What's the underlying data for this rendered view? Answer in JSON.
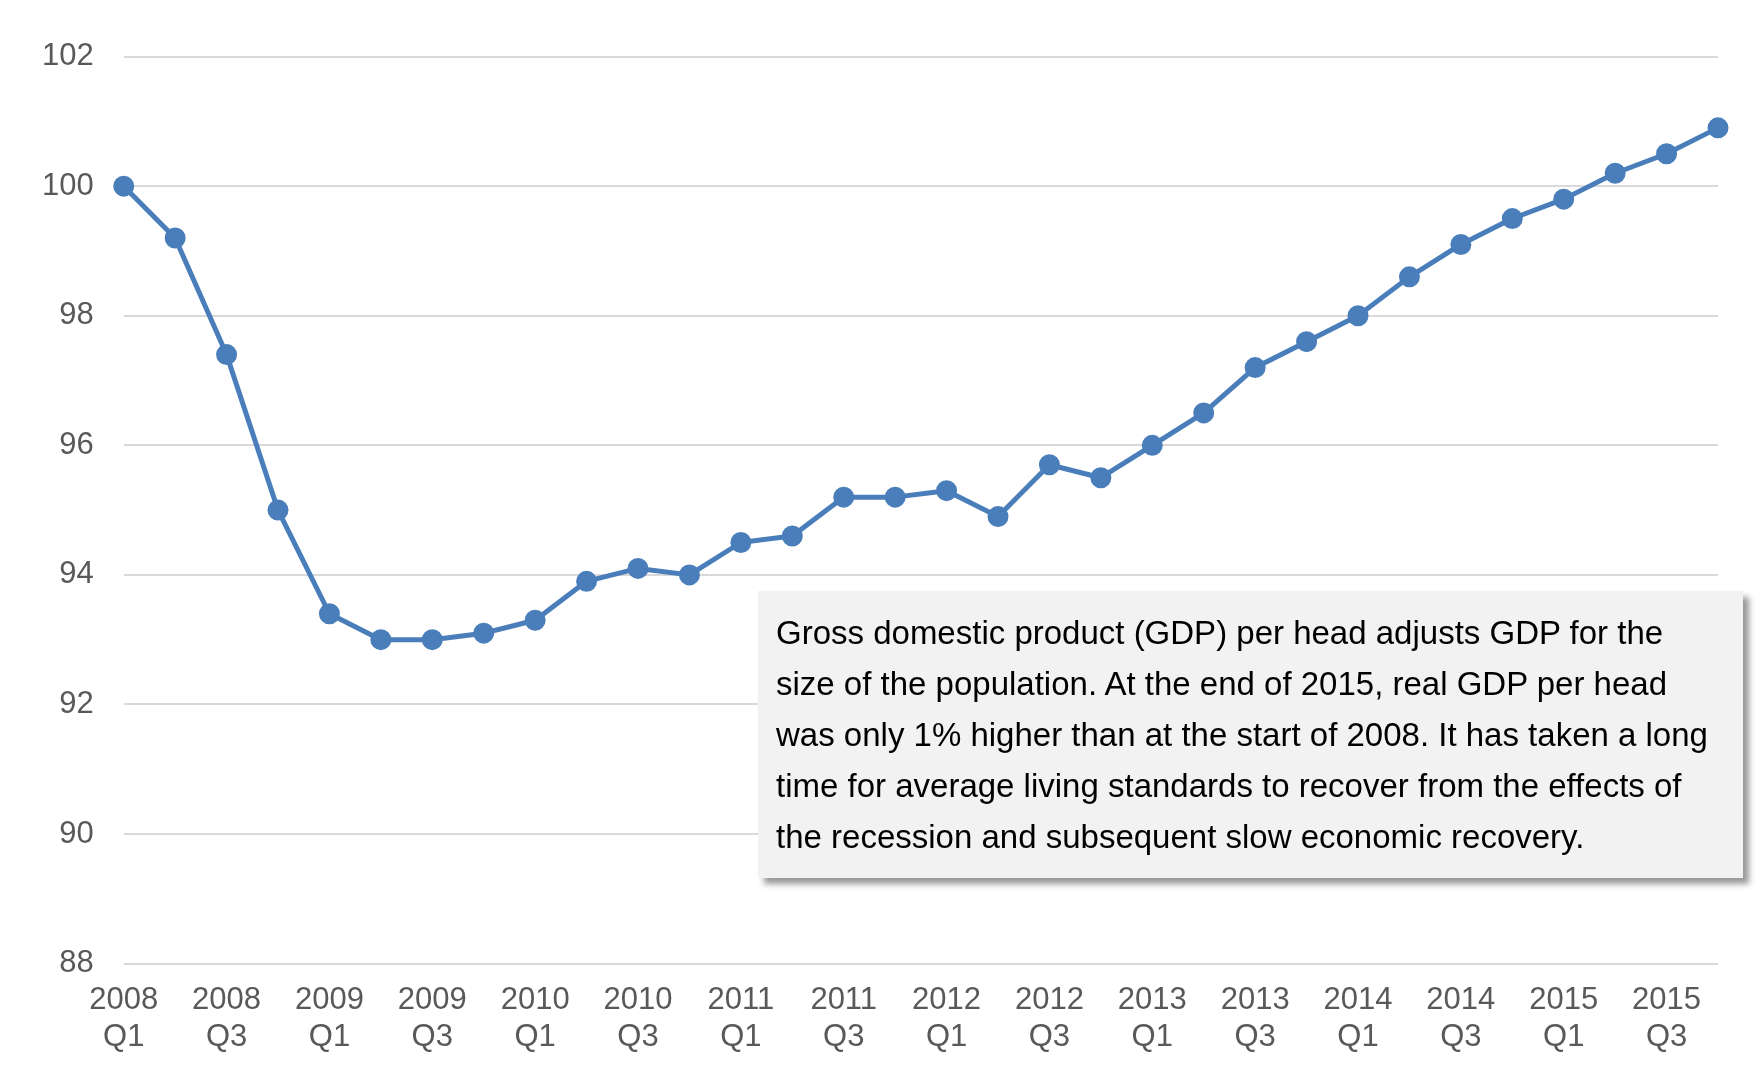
{
  "chart_data": {
    "type": "line",
    "categories": [
      "2008 Q1",
      null,
      "2008 Q3",
      null,
      "2009 Q1",
      null,
      "2009 Q3",
      null,
      "2010 Q1",
      null,
      "2010 Q3",
      null,
      "2011 Q1",
      null,
      "2011 Q3",
      null,
      "2012 Q1",
      null,
      "2012 Q3",
      null,
      "2013 Q1",
      null,
      "2013 Q3",
      null,
      "2014 Q1",
      null,
      "2014 Q3",
      null,
      "2015 Q1",
      null,
      "2015 Q3",
      null
    ],
    "series": [
      {
        "color": "#4a7ebb",
        "values": [
          100,
          99.2,
          97.4,
          95.0,
          93.4,
          93.0,
          93.0,
          93.1,
          93.3,
          93.9,
          94.1,
          94.0,
          94.5,
          94.6,
          95.2,
          95.2,
          95.3,
          94.9,
          95.7,
          95.5,
          96.0,
          96.5,
          97.2,
          97.6,
          98.0,
          98.6,
          99.1,
          99.5,
          99.8,
          100.2,
          100.5,
          100.9
        ]
      }
    ],
    "ylim": [
      88,
      102
    ],
    "yticks": [
      88,
      90,
      92,
      94,
      96,
      98,
      100,
      102
    ],
    "grid": "y",
    "legend": false,
    "marker": "circle",
    "line_style": "solid",
    "annotations": [
      "Gross domestic product (GDP) per head adjusts GDP for the size of the population.  At the end of 2015, real GDP per head was only 1% higher than at the start of 2008. It has taken a long time for average living standards to recover from the effects of the recession and subsequent slow economic recovery."
    ]
  }
}
